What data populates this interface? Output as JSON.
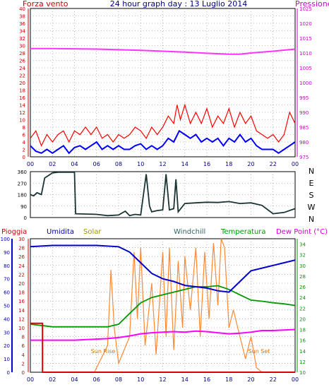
{
  "header": {
    "wind_label": "Forza vento",
    "title": "24 hour graph day : 13 Luglio 2014",
    "pressure_label": "Pressione"
  },
  "top_panel": {
    "wind_ticks": [
      0,
      2,
      4,
      6,
      8,
      10,
      12,
      14,
      16,
      18,
      20,
      22,
      24,
      26,
      28,
      30,
      32,
      34,
      36,
      38,
      40
    ],
    "wind_range": [
      0,
      40
    ],
    "pressure_ticks": [
      975,
      980,
      985,
      990,
      995,
      1000,
      1005,
      1010,
      1015,
      1020,
      1025
    ],
    "pressure_range": [
      975,
      1025
    ],
    "pressure_series": [
      [
        0,
        1011.5
      ],
      [
        2,
        1011.5
      ],
      [
        4,
        1011.4
      ],
      [
        6,
        1011.3
      ],
      [
        8,
        1011.1
      ],
      [
        10,
        1010.9
      ],
      [
        12,
        1010.6
      ],
      [
        14,
        1010.3
      ],
      [
        16,
        1009.9
      ],
      [
        18,
        1009.6
      ],
      [
        19,
        1009.6
      ],
      [
        20,
        1010.0
      ],
      [
        22,
        1010.6
      ],
      [
        24,
        1011.3
      ]
    ],
    "wind_gust_series": [
      [
        0,
        5
      ],
      [
        0.5,
        7
      ],
      [
        1,
        3
      ],
      [
        1.5,
        6
      ],
      [
        2,
        4
      ],
      [
        2.5,
        6
      ],
      [
        3,
        7
      ],
      [
        3.5,
        4
      ],
      [
        4,
        7
      ],
      [
        4.5,
        6
      ],
      [
        5,
        8
      ],
      [
        5.5,
        6
      ],
      [
        6,
        8
      ],
      [
        6.5,
        5
      ],
      [
        7,
        6
      ],
      [
        7.5,
        4
      ],
      [
        8,
        6
      ],
      [
        8.5,
        5
      ],
      [
        9,
        6
      ],
      [
        9.5,
        8
      ],
      [
        10,
        7
      ],
      [
        10.5,
        5
      ],
      [
        11,
        8
      ],
      [
        11.5,
        6
      ],
      [
        12,
        8
      ],
      [
        12.5,
        11
      ],
      [
        13,
        9
      ],
      [
        13.3,
        14
      ],
      [
        13.6,
        10
      ],
      [
        14,
        14
      ],
      [
        14.5,
        9
      ],
      [
        15,
        12
      ],
      [
        15.5,
        9
      ],
      [
        16,
        13
      ],
      [
        16.5,
        8
      ],
      [
        17,
        11
      ],
      [
        17.5,
        9
      ],
      [
        18,
        13
      ],
      [
        18.5,
        8
      ],
      [
        19,
        12
      ],
      [
        19.5,
        9
      ],
      [
        20,
        11
      ],
      [
        20.5,
        7
      ],
      [
        21,
        6
      ],
      [
        21.5,
        5
      ],
      [
        22,
        6
      ],
      [
        22.5,
        4
      ],
      [
        23,
        6
      ],
      [
        23.5,
        12
      ],
      [
        24,
        9
      ]
    ],
    "wind_avg_series": [
      [
        0,
        3
      ],
      [
        0.5,
        1.5
      ],
      [
        1,
        1
      ],
      [
        1.5,
        2
      ],
      [
        2,
        1
      ],
      [
        2.5,
        2
      ],
      [
        3,
        3
      ],
      [
        3.5,
        1
      ],
      [
        4,
        2.5
      ],
      [
        4.5,
        3
      ],
      [
        5,
        2
      ],
      [
        5.5,
        3
      ],
      [
        6,
        4
      ],
      [
        6.5,
        2
      ],
      [
        7,
        3
      ],
      [
        7.5,
        2
      ],
      [
        8,
        3
      ],
      [
        8.5,
        2
      ],
      [
        9,
        2
      ],
      [
        9.5,
        3
      ],
      [
        10,
        3.5
      ],
      [
        10.5,
        2
      ],
      [
        11,
        3
      ],
      [
        11.5,
        2
      ],
      [
        12,
        3
      ],
      [
        12.5,
        5
      ],
      [
        13,
        4
      ],
      [
        13.5,
        7
      ],
      [
        14,
        6
      ],
      [
        14.5,
        5
      ],
      [
        15,
        6
      ],
      [
        15.5,
        4
      ],
      [
        16,
        5
      ],
      [
        16.5,
        4
      ],
      [
        17,
        5
      ],
      [
        17.5,
        3
      ],
      [
        18,
        5
      ],
      [
        18.5,
        4
      ],
      [
        19,
        6
      ],
      [
        19.5,
        4
      ],
      [
        20,
        5
      ],
      [
        20.5,
        3
      ],
      [
        21,
        2
      ],
      [
        21.5,
        2
      ],
      [
        22,
        2
      ],
      [
        22.5,
        1
      ],
      [
        23,
        2
      ],
      [
        23.5,
        3
      ],
      [
        24,
        4
      ]
    ]
  },
  "x_ticks": [
    "00",
    "02",
    "04",
    "06",
    "08",
    "10",
    "12",
    "14",
    "16",
    "18",
    "20",
    "22",
    "00"
  ],
  "direction_panel": {
    "y_ticks": [
      0,
      90,
      180,
      270,
      360
    ],
    "range": [
      0,
      360
    ],
    "compass_labels": [
      "N",
      "W",
      "S",
      "E",
      "N"
    ],
    "series": [
      [
        0,
        180
      ],
      [
        0.3,
        170
      ],
      [
        0.6,
        195
      ],
      [
        1,
        180
      ],
      [
        1.3,
        310
      ],
      [
        2,
        350
      ],
      [
        2.5,
        355
      ],
      [
        4,
        355
      ],
      [
        4.1,
        30
      ],
      [
        6,
        25
      ],
      [
        6.5,
        20
      ],
      [
        7,
        15
      ],
      [
        8,
        20
      ],
      [
        8.6,
        50
      ],
      [
        9,
        15
      ],
      [
        9.5,
        25
      ],
      [
        10,
        20
      ],
      [
        10.5,
        340
      ],
      [
        10.8,
        90
      ],
      [
        11,
        45
      ],
      [
        11.5,
        55
      ],
      [
        12,
        60
      ],
      [
        12.3,
        340
      ],
      [
        12.6,
        60
      ],
      [
        13,
        70
      ],
      [
        13.2,
        300
      ],
      [
        13.4,
        45
      ],
      [
        14,
        110
      ],
      [
        15,
        115
      ],
      [
        16,
        120
      ],
      [
        17,
        118
      ],
      [
        18,
        125
      ],
      [
        19,
        110
      ],
      [
        20,
        115
      ],
      [
        21,
        95
      ],
      [
        22,
        30
      ],
      [
        23,
        40
      ],
      [
        24,
        70
      ]
    ]
  },
  "bottom_panel": {
    "labels": {
      "rain": "Pioggia",
      "humidity": "Umidita",
      "solar": "Solar",
      "windchill": "Windchill",
      "temperature": "Temperatura",
      "dewpoint": "Dew Point (°C)"
    },
    "annotations": {
      "sunrise": "Sun Rise",
      "sunset": "Sun Set"
    },
    "humidity_ticks": [
      0,
      10,
      20,
      30,
      40,
      50,
      60,
      70,
      80,
      90,
      100
    ],
    "rain_ticks": [
      0,
      2,
      4,
      6,
      8,
      10,
      12,
      14,
      16,
      18,
      20,
      22,
      24,
      26,
      28,
      30
    ],
    "temp_ticks": [
      10,
      12,
      14,
      16,
      18,
      20,
      22,
      24,
      26,
      28,
      30,
      32,
      34
    ],
    "humidity_range": [
      0,
      100
    ],
    "rain_range": [
      0,
      30
    ],
    "temp_range": [
      10,
      35
    ],
    "humidity_series": [
      [
        0,
        94
      ],
      [
        2,
        95
      ],
      [
        4,
        95
      ],
      [
        6,
        95
      ],
      [
        8,
        94
      ],
      [
        9,
        90
      ],
      [
        10,
        82
      ],
      [
        11,
        74
      ],
      [
        12,
        70
      ],
      [
        13,
        68
      ],
      [
        14,
        65
      ],
      [
        16,
        63
      ],
      [
        17,
        61
      ],
      [
        18,
        60
      ],
      [
        19,
        68
      ],
      [
        20,
        76
      ],
      [
        21,
        78
      ],
      [
        22,
        80
      ],
      [
        23,
        82
      ],
      [
        24,
        84
      ]
    ],
    "temperature_series": [
      [
        0,
        19
      ],
      [
        2,
        18.5
      ],
      [
        4,
        18.5
      ],
      [
        6,
        18.5
      ],
      [
        7,
        18.5
      ],
      [
        8,
        19
      ],
      [
        9,
        21
      ],
      [
        10,
        23
      ],
      [
        11,
        24
      ],
      [
        12,
        24.5
      ],
      [
        13,
        25
      ],
      [
        14,
        25.5
      ],
      [
        15,
        26
      ],
      [
        16,
        26
      ],
      [
        17,
        26.2
      ],
      [
        18,
        25.5
      ],
      [
        19,
        24.5
      ],
      [
        20,
        23.5
      ],
      [
        21,
        23.3
      ],
      [
        22,
        23
      ],
      [
        23,
        22.8
      ],
      [
        24,
        22.5
      ]
    ],
    "dewpoint_series": [
      [
        0,
        16
      ],
      [
        2,
        16
      ],
      [
        4,
        16
      ],
      [
        6,
        16.2
      ],
      [
        7,
        16.3
      ],
      [
        8,
        16.5
      ],
      [
        9,
        16.8
      ],
      [
        10,
        17.2
      ],
      [
        11,
        17.4
      ],
      [
        12,
        17.5
      ],
      [
        13,
        17.6
      ],
      [
        14,
        17.5
      ],
      [
        15,
        17.7
      ],
      [
        16,
        17.6
      ],
      [
        17,
        17.4
      ],
      [
        18,
        17.2
      ],
      [
        19,
        17.3
      ],
      [
        20,
        17.5
      ],
      [
        21,
        17.8
      ],
      [
        22,
        17.8
      ],
      [
        23,
        17.9
      ],
      [
        24,
        18
      ]
    ],
    "rain_series": [
      [
        0,
        11
      ],
      [
        1.1,
        11
      ],
      [
        1.1,
        0
      ],
      [
        24,
        0
      ]
    ],
    "solar_series": [
      [
        5.8,
        0
      ],
      [
        6.2,
        2
      ],
      [
        7,
        6
      ],
      [
        7.3,
        23
      ],
      [
        7.6,
        10
      ],
      [
        8,
        2
      ],
      [
        8.5,
        5
      ],
      [
        9,
        8
      ],
      [
        9.4,
        27
      ],
      [
        9.7,
        12
      ],
      [
        10,
        28
      ],
      [
        10.4,
        6
      ],
      [
        11,
        20
      ],
      [
        11.4,
        4
      ],
      [
        12,
        27
      ],
      [
        12.3,
        8
      ],
      [
        12.6,
        28
      ],
      [
        13,
        5
      ],
      [
        13.4,
        25
      ],
      [
        13.8,
        10
      ],
      [
        14,
        26
      ],
      [
        14.5,
        14
      ],
      [
        15,
        28
      ],
      [
        15.4,
        8
      ],
      [
        15.8,
        27
      ],
      [
        16.2,
        12
      ],
      [
        16.6,
        29
      ],
      [
        17,
        15
      ],
      [
        17.3,
        30
      ],
      [
        17.6,
        28
      ],
      [
        18,
        10
      ],
      [
        18.4,
        14
      ],
      [
        19,
        8
      ],
      [
        19.5,
        3
      ],
      [
        20,
        8
      ],
      [
        20.5,
        1
      ],
      [
        21,
        0
      ]
    ]
  },
  "colors": {
    "wind_axis": "#cc0000",
    "pressure_axis": "#cc00cc",
    "wind_gust": "#ff0000",
    "wind_avg": "#0000ff",
    "pressure": "#ff33ff",
    "direction": "#1a3333",
    "humidity": "#0000cc",
    "temperature": "#009900",
    "dewpoint": "#ff00ff",
    "rain": "#dd0000",
    "solar": "#ff8833",
    "windchill": "#336666",
    "solar_label": "#999900",
    "sun_annotation": "#e07000"
  }
}
